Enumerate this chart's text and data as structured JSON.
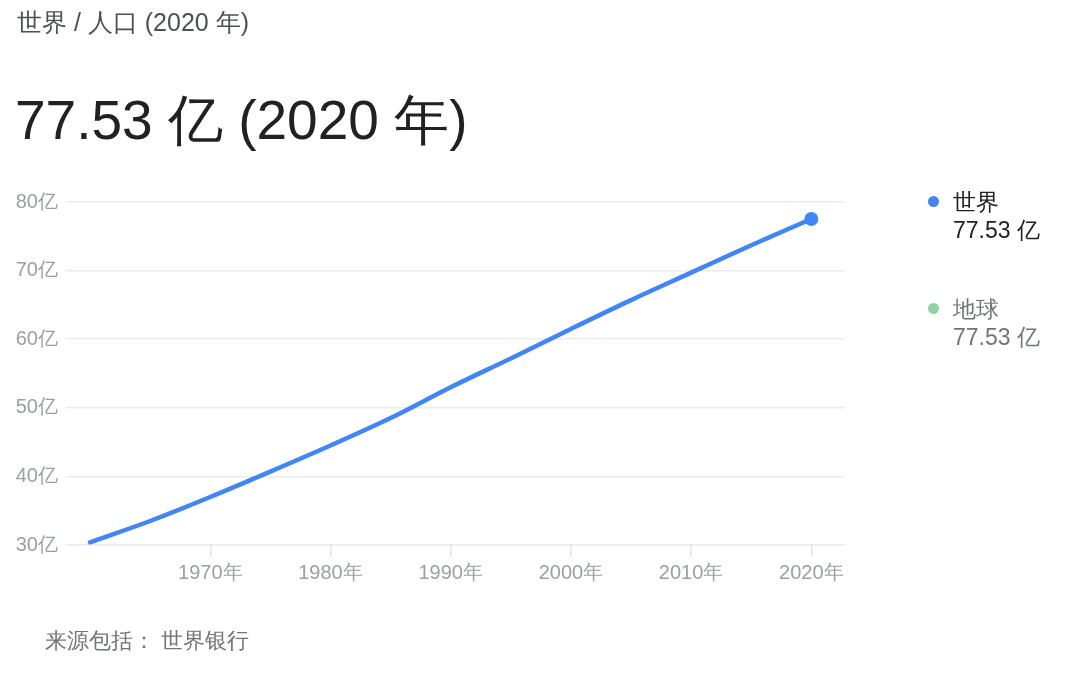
{
  "chart_data": {
    "type": "line",
    "title": "世界 / 人口 (2020 年)",
    "subtitle": "77.53 亿 (2020 年)",
    "x": [
      1960,
      1965,
      1970,
      1975,
      1980,
      1985,
      1990,
      1995,
      2000,
      2005,
      2010,
      2015,
      2020
    ],
    "series": [
      {
        "name": "世界",
        "color": "#4285f4",
        "values": [
          30.4,
          33.5,
          37.0,
          40.7,
          44.5,
          48.5,
          53.0,
          57.2,
          61.5,
          65.7,
          69.7,
          73.7,
          77.53
        ]
      },
      {
        "name": "地球",
        "color": "#93d0a4",
        "values": [
          null,
          null,
          null,
          null,
          null,
          null,
          null,
          null,
          null,
          null,
          null,
          null,
          null
        ]
      },
      {
        "type": "scatter",
        "color": "#4285f4",
        "x": [
          2020
        ],
        "values": [
          77.53
        ]
      }
    ],
    "xlim": [
      1958,
      2022.8
    ],
    "xticks": [
      {
        "value": 1970,
        "label": "1970年"
      },
      {
        "value": 1980,
        "label": "1980年"
      },
      {
        "value": 1990,
        "label": "1990年"
      },
      {
        "value": 2000,
        "label": "2000年"
      },
      {
        "value": 2010,
        "label": "2010年"
      },
      {
        "value": 2020,
        "label": "2020年"
      }
    ],
    "ylim": [
      30,
      80
    ],
    "yticks": [
      {
        "value": 30,
        "label": "30亿"
      },
      {
        "value": 40,
        "label": "40亿"
      },
      {
        "value": 50,
        "label": "50亿"
      },
      {
        "value": 60,
        "label": "60亿"
      },
      {
        "value": 70,
        "label": "70亿"
      },
      {
        "value": 80,
        "label": "80亿"
      }
    ],
    "grid": "y",
    "legend": "right",
    "annotations": [
      "77.53 亿",
      "77.53 亿",
      "来源包括： 世界银行"
    ]
  }
}
